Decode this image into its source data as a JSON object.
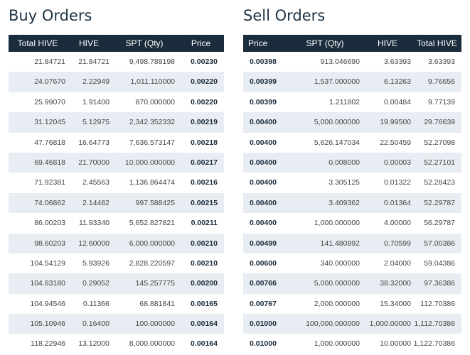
{
  "buy": {
    "title": "Buy Orders",
    "headers": [
      "Total HIVE",
      "HIVE",
      "SPT (Qty)",
      "Price"
    ],
    "rows": [
      [
        "21.84721",
        "21.84721",
        "9,498.788198",
        "0.00230"
      ],
      [
        "24.07670",
        "2.22949",
        "1,011.110000",
        "0.00220"
      ],
      [
        "25.99070",
        "1.91400",
        "870.000000",
        "0.00220"
      ],
      [
        "31.12045",
        "5.12975",
        "2,342.352332",
        "0.00219"
      ],
      [
        "47.76818",
        "16.64773",
        "7,636.573147",
        "0.00218"
      ],
      [
        "69.46818",
        "21.70000",
        "10,000.000000",
        "0.00217"
      ],
      [
        "71.92381",
        "2.45563",
        "1,136.864474",
        "0.00216"
      ],
      [
        "74.06862",
        "2.14482",
        "997.588425",
        "0.00215"
      ],
      [
        "86.00203",
        "11.93340",
        "5,652.827821",
        "0.00211"
      ],
      [
        "98.60203",
        "12.60000",
        "6,000.000000",
        "0.00210"
      ],
      [
        "104.54129",
        "5.93926",
        "2,828.220597",
        "0.00210"
      ],
      [
        "104.83180",
        "0.29052",
        "145.257775",
        "0.00200"
      ],
      [
        "104.94546",
        "0.11366",
        "68.881841",
        "0.00165"
      ],
      [
        "105.10946",
        "0.16400",
        "100.000000",
        "0.00164"
      ],
      [
        "118.22946",
        "13.12000",
        "8,000.000000",
        "0.00164"
      ]
    ]
  },
  "sell": {
    "title": "Sell Orders",
    "headers": [
      "Price",
      "SPT (Qty)",
      "HIVE",
      "Total HIVE"
    ],
    "rows": [
      [
        "0.00398",
        "913.046690",
        "3.63393",
        "3.63393"
      ],
      [
        "0.00399",
        "1,537.000000",
        "6.13263",
        "9.76656"
      ],
      [
        "0.00399",
        "1.211802",
        "0.00484",
        "9.77139"
      ],
      [
        "0.00400",
        "5,000.000000",
        "19.99500",
        "29.76639"
      ],
      [
        "0.00400",
        "5,626.147034",
        "22.50459",
        "52.27098"
      ],
      [
        "0.00400",
        "0.008000",
        "0.00003",
        "52.27101"
      ],
      [
        "0.00400",
        "3.305125",
        "0.01322",
        "52.28423"
      ],
      [
        "0.00400",
        "3.409362",
        "0.01364",
        "52.29787"
      ],
      [
        "0.00400",
        "1,000.000000",
        "4.00000",
        "56.29787"
      ],
      [
        "0.00499",
        "141.480892",
        "0.70599",
        "57.00386"
      ],
      [
        "0.00600",
        "340.000000",
        "2.04000",
        "59.04386"
      ],
      [
        "0.00766",
        "5,000.000000",
        "38.32000",
        "97.36386"
      ],
      [
        "0.00767",
        "2,000.000000",
        "15.34000",
        "112.70386"
      ],
      [
        "0.01000",
        "100,000.000000",
        "1,000.00000",
        "1,112.70386"
      ],
      [
        "0.01000",
        "1,000.000000",
        "10.00000",
        "1,122.70386"
      ]
    ]
  }
}
